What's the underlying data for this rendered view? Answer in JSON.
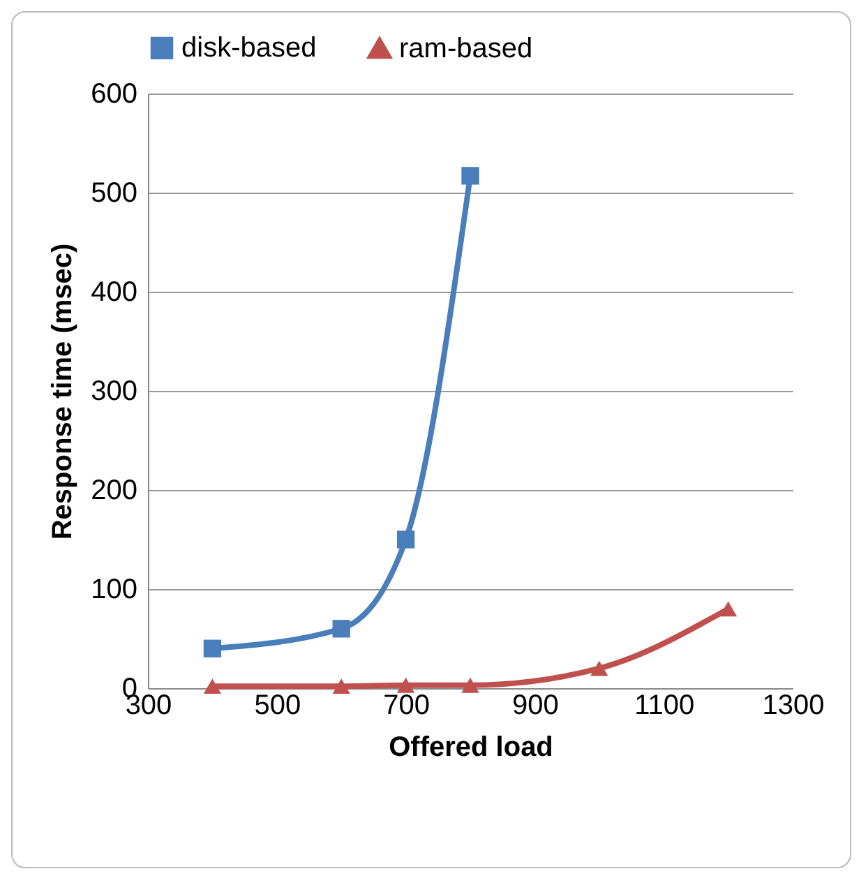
{
  "chart_data": {
    "type": "line",
    "xlabel": "Offered load",
    "ylabel": "Response time (msec)",
    "xlim": [
      300,
      1300
    ],
    "xticks": [
      300,
      500,
      700,
      900,
      {
        "value": 1100,
        "label": "1100"
      },
      {
        "value": 1300,
        "label": "1300"
      }
    ],
    "ylim": [
      0,
      600
    ],
    "yticks": [
      0,
      100,
      200,
      300,
      400,
      500,
      600
    ],
    "grid": "y",
    "legend": "top",
    "series": [
      {
        "name": "disk-based",
        "color": "#4a7ebb",
        "marker": "square",
        "x": [
          400,
          600,
          700,
          800
        ],
        "values": [
          40,
          60,
          150,
          517
        ]
      },
      {
        "name": "ram-based",
        "color": "#c0504d",
        "marker": "triangle",
        "x": [
          400,
          600,
          700,
          800,
          1000,
          1200
        ],
        "values": [
          2,
          2,
          3,
          3,
          20,
          80
        ]
      }
    ]
  }
}
